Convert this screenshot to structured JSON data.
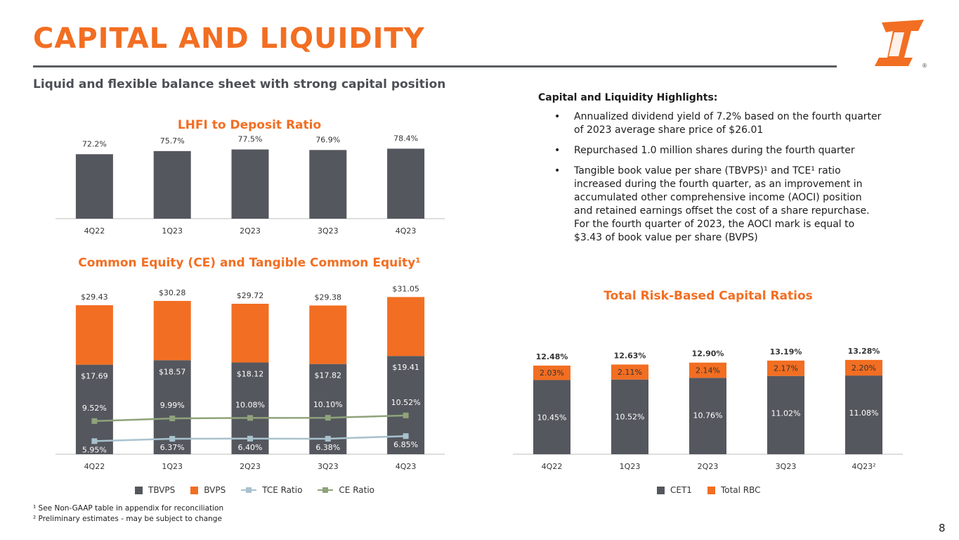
{
  "header": {
    "title": "CAPITAL AND LIQUIDITY",
    "subtitle": "Liquid and flexible balance sheet with strong capital position",
    "page_number": "8"
  },
  "colors": {
    "accent": "#F26E22",
    "dark": "#55575E",
    "tce_line": "#A8C2CE",
    "ce_line": "#8FA37A"
  },
  "chart_data": [
    {
      "type": "bar",
      "title": "LHFI to Deposit Ratio",
      "categories": [
        "4Q22",
        "1Q23",
        "2Q23",
        "3Q23",
        "4Q23"
      ],
      "values": [
        72.2,
        75.7,
        77.5,
        76.9,
        78.4
      ],
      "labels": [
        "72.2%",
        "75.7%",
        "77.5%",
        "76.9%",
        "78.4%"
      ]
    },
    {
      "type": "bar",
      "title": "Common Equity (CE) and Tangible Common Equity¹",
      "categories": [
        "4Q22",
        "1Q23",
        "2Q23",
        "3Q23",
        "4Q23"
      ],
      "series": [
        {
          "name": "TBVPS",
          "values": [
            17.69,
            18.57,
            18.12,
            17.82,
            19.41
          ],
          "labels": [
            "$17.69",
            "$18.57",
            "$18.12",
            "$17.82",
            "$19.41"
          ]
        },
        {
          "name": "BVPS",
          "values": [
            29.43,
            30.28,
            29.72,
            29.38,
            31.05
          ],
          "labels": [
            "$29.43",
            "$30.28",
            "$29.72",
            "$29.38",
            "$31.05"
          ]
        },
        {
          "name": "TCE Ratio",
          "values": [
            5.95,
            6.37,
            6.4,
            6.38,
            6.85
          ],
          "labels": [
            "5.95%",
            "6.37%",
            "6.40%",
            "6.38%",
            "6.85%"
          ]
        },
        {
          "name": "CE Ratio",
          "values": [
            9.52,
            9.99,
            10.08,
            10.1,
            10.52
          ],
          "labels": [
            "9.52%",
            "9.99%",
            "10.08%",
            "10.10%",
            "10.52%"
          ]
        }
      ]
    },
    {
      "type": "bar",
      "title": "Total Risk-Based Capital Ratios",
      "categories": [
        "4Q22",
        "1Q23",
        "2Q23",
        "3Q23",
        "4Q23²"
      ],
      "series": [
        {
          "name": "CET1",
          "values": [
            10.45,
            10.52,
            10.76,
            11.02,
            11.08
          ],
          "labels": [
            "10.45%",
            "10.52%",
            "10.76%",
            "11.02%",
            "11.08%"
          ]
        },
        {
          "name": "Total RBC",
          "values": [
            2.03,
            2.11,
            2.14,
            2.17,
            2.2
          ],
          "labels": [
            "2.03%",
            "2.11%",
            "2.14%",
            "2.17%",
            "2.20%"
          ]
        }
      ],
      "totals": [
        12.48,
        12.63,
        12.9,
        13.19,
        13.28
      ],
      "total_labels": [
        "12.48%",
        "12.63%",
        "12.90%",
        "13.19%",
        "13.28%"
      ]
    }
  ],
  "highlights": {
    "heading": "Capital and Liquidity Highlights:",
    "bullets": [
      "Annualized dividend yield of 7.2% based on the fourth quarter of 2023 average share price of $26.01",
      "Repurchased 1.0 million shares during the fourth quarter",
      "Tangible book value per share (TBVPS)¹ and TCE¹ ratio increased during the fourth quarter, as an improvement in accumulated other comprehensive income (AOCI) position and retained earnings offset the cost of a share repurchase. For the fourth quarter of 2023, the AOCI mark is equal to $3.43 of book value per share (BVPS)"
    ]
  },
  "footnotes": [
    "¹ See Non-GAAP table in appendix for reconciliation",
    "² Preliminary estimates - may be subject to change"
  ],
  "logo": {
    "icon": "company-logo-icon",
    "mark": "®"
  }
}
